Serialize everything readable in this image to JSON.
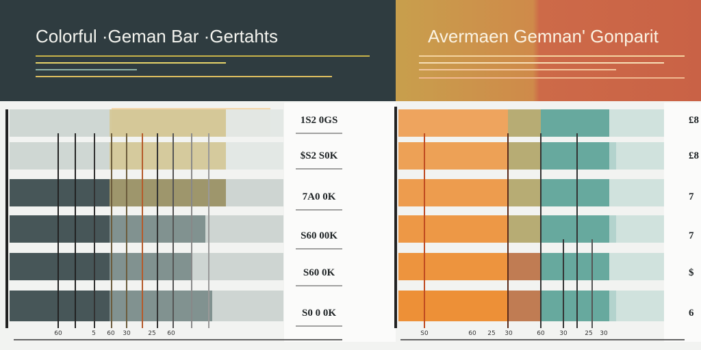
{
  "left_panel": {
    "title": "Colorful ·Geman Bar ·Gertahts",
    "labels": [
      "1S2 0GS",
      "$S2 S0K",
      "7A0 0K",
      "S60 00K",
      "S60 0K",
      "S0 0 0K"
    ],
    "axis_labels": [
      "60",
      "5",
      "60",
      "30",
      "25",
      "60"
    ]
  },
  "right_panel": {
    "title": "Avermaen Gemnan' Gonparit",
    "labels": [
      "£8",
      "£8",
      "7",
      "7",
      "$",
      "6"
    ],
    "axis_labels": [
      "S0",
      "60",
      "25",
      "30",
      "60",
      "30",
      "25",
      "30"
    ]
  }
}
